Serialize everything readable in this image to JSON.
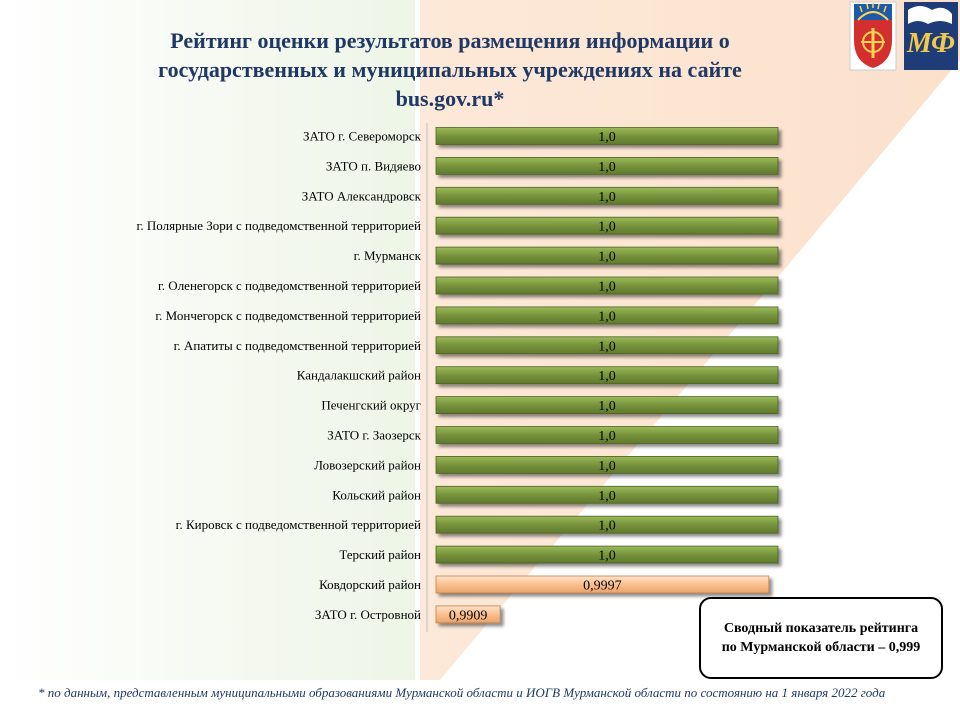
{
  "title": {
    "line1": "Рейтинг оценки результатов размещения  информации о",
    "line2": "государственных и муниципальных учреждениях на сайте",
    "line3": "bus.gov.ru*"
  },
  "chart_data": {
    "type": "bar",
    "orientation": "horizontal",
    "categories": [
      "ЗАТО г. Североморск",
      "ЗАТО п. Видяево",
      "ЗАТО Александровск",
      "г. Полярные Зори  с подведомственной территорией",
      "г. Мурманск",
      "г. Оленегорск  с подведомственной территорией",
      "г. Мончегорск  с подведомственной территорией",
      "г. Апатиты  с подведомственной территорией",
      "Кандалакшский район",
      "Печенгский округ",
      "ЗАТО г. Заозерск",
      "Ловозерский район",
      "Кольский район",
      "г. Кировск с подведомственной территорией",
      "Терский район",
      "Ковдорский район",
      "ЗАТО г. Островной"
    ],
    "values": [
      1.0,
      1.0,
      1.0,
      1.0,
      1.0,
      1.0,
      1.0,
      1.0,
      1.0,
      1.0,
      1.0,
      1.0,
      1.0,
      1.0,
      1.0,
      0.9997,
      0.9909
    ],
    "value_labels": [
      "1,0",
      "1,0",
      "1,0",
      "1,0",
      "1,0",
      "1,0",
      "1,0",
      "1,0",
      "1,0",
      "1,0",
      "1,0",
      "1,0",
      "1,0",
      "1,0",
      "1,0",
      "0,9997",
      "0,9909"
    ],
    "colors": {
      "full": "#77933c",
      "partial": "#fac090"
    },
    "xlim": [
      0.9888,
      1.0
    ],
    "title": "",
    "xlabel": "",
    "ylabel": ""
  },
  "summary": {
    "text": "Сводный показатель рейтинга по Мурманской области – 0,999"
  },
  "footnote": {
    "text": "* по данным, представленным  муниципальными образованиями Мурманской области и ИОГВ Мурманской области по состоянию на 1 января 2022 года"
  },
  "colors": {
    "title": "#1f3864",
    "background_peach": "#fbe5d6",
    "background_green": "#e2efd9"
  },
  "icons": {
    "logo1": "murmansk-region-coat-of-arms-icon",
    "logo2": "murmansk-finance-ministry-emblem-icon"
  }
}
